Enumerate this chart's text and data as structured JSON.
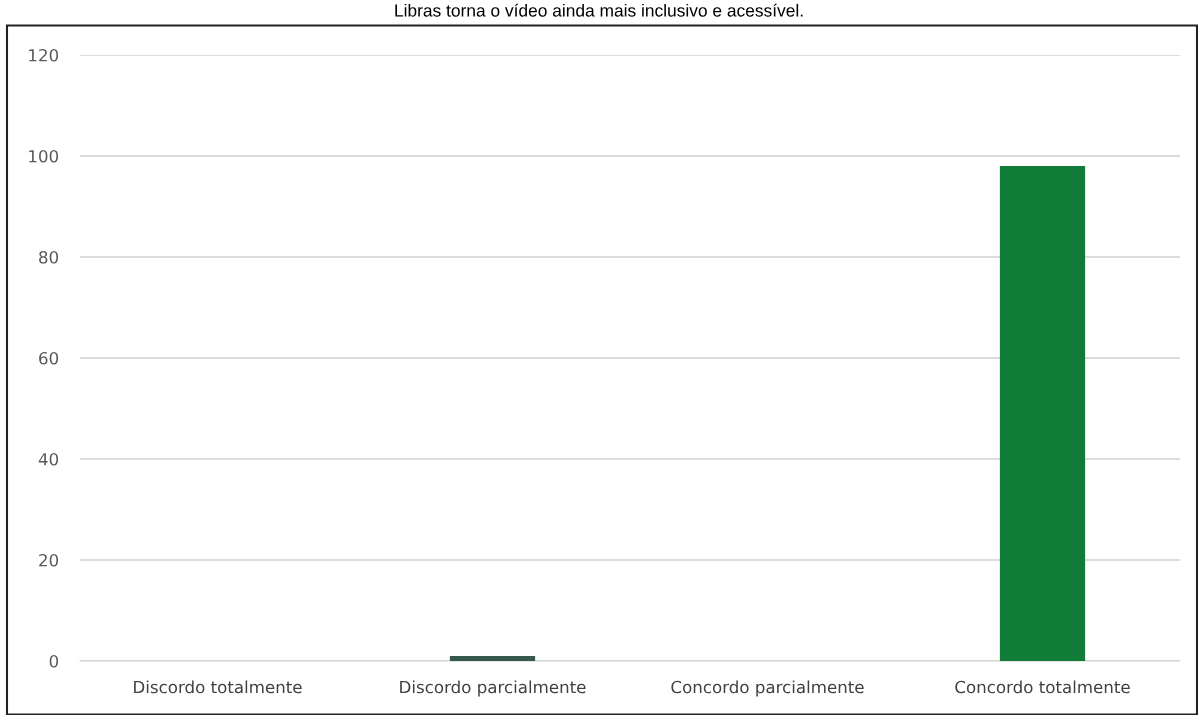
{
  "chart_data": {
    "type": "bar",
    "title": "Libras torna o vídeo ainda mais inclusivo e acessível.",
    "categories": [
      "Discordo totalmente",
      "Discordo parcialmente",
      "Concordo parcialmente",
      "Concordo totalmente"
    ],
    "values": [
      0,
      1,
      0,
      98
    ],
    "colors": [
      "#107c38",
      "#35584a",
      "#107c38",
      "#107c38"
    ],
    "ylim": [
      0,
      120
    ],
    "yticks": [
      0,
      20,
      40,
      60,
      80,
      100,
      120
    ],
    "grid": "y",
    "legend": false
  }
}
